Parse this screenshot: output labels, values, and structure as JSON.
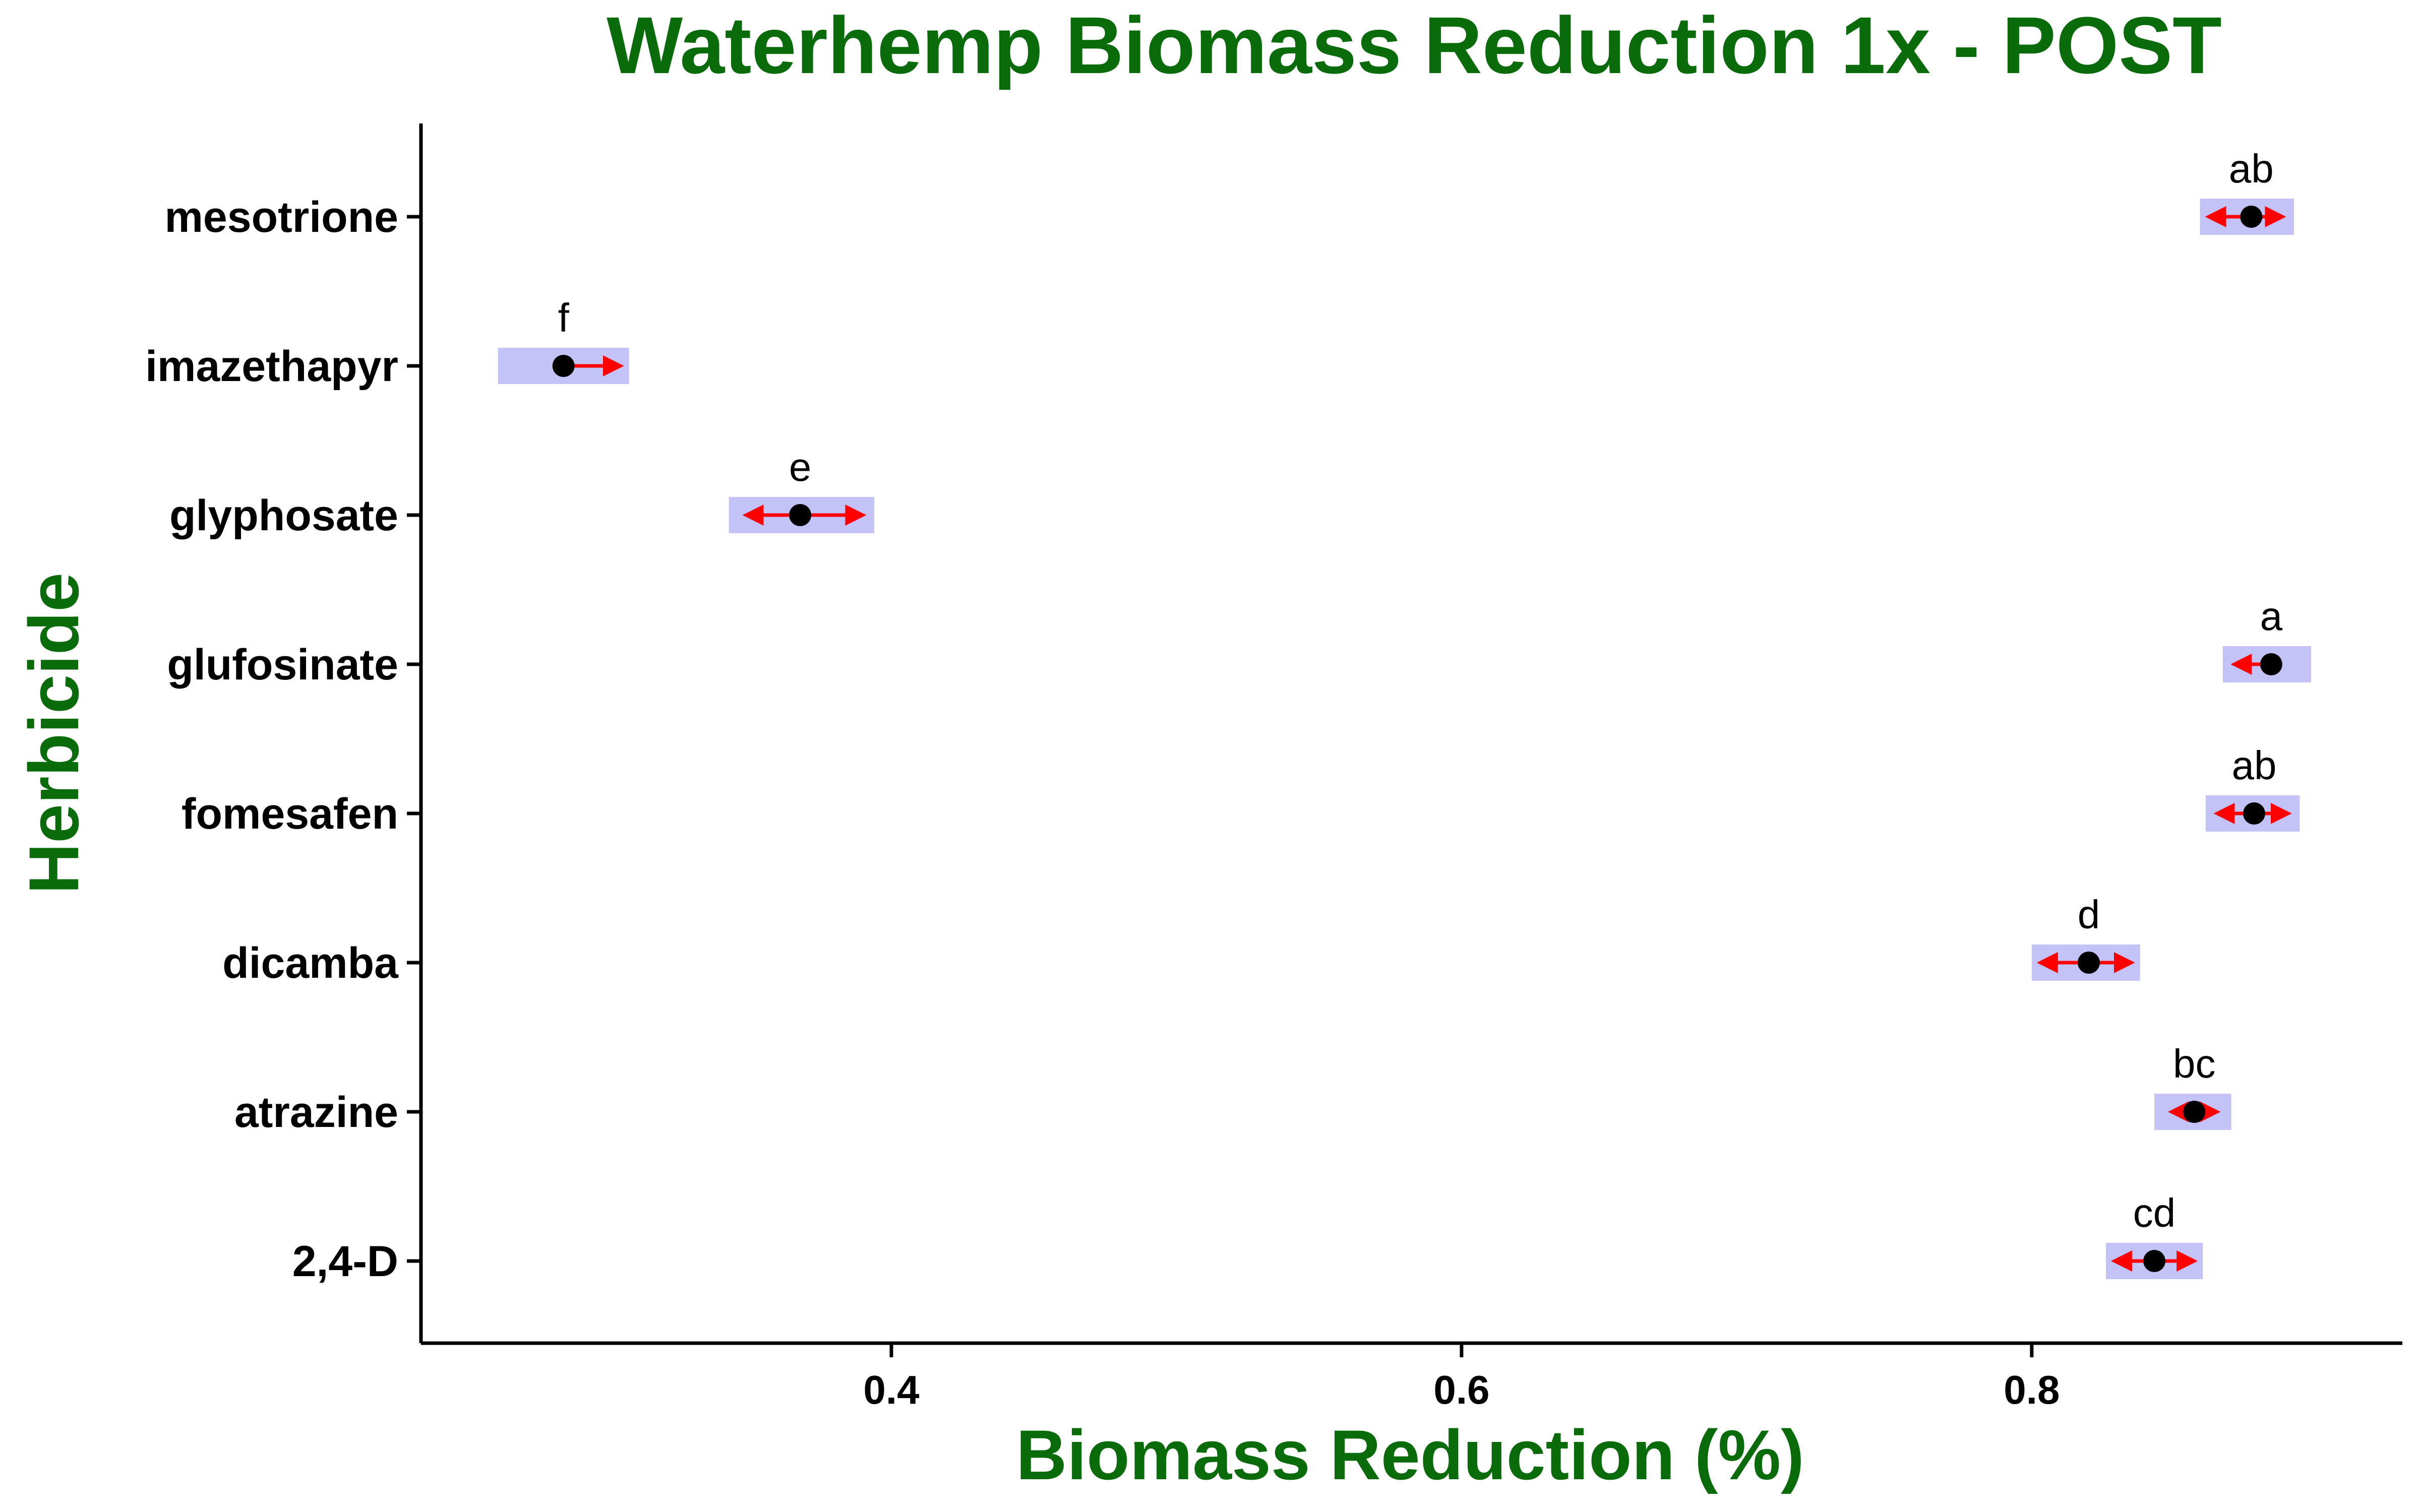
{
  "chart_data": {
    "type": "scatter",
    "title": "Waterhemp Biomass Reduction 1x - POST",
    "xlabel": "Biomass Reduction (%)",
    "ylabel": "Herbicide",
    "xlim": [
      0.235,
      0.93
    ],
    "xticks": [
      0.4,
      0.6,
      0.8
    ],
    "xtick_labels": [
      "0.4",
      "0.6",
      "0.8"
    ],
    "categories": [
      "mesotrione",
      "imazethapyr",
      "glyphosate",
      "glufosinate",
      "fomesafen",
      "dicamba",
      "atrazine",
      "2,4-D"
    ],
    "points": [
      {
        "herbicide": "mesotrione",
        "estimate": 0.877,
        "lower": 0.859,
        "upper": 0.892,
        "ci_lower": 0.862,
        "ci_upper": 0.888,
        "group": "ab"
      },
      {
        "herbicide": "imazethapyr",
        "estimate": 0.285,
        "lower": 0.262,
        "upper": 0.308,
        "ci_lower": 0.285,
        "ci_upper": 0.305,
        "group": "f"
      },
      {
        "herbicide": "glyphosate",
        "estimate": 0.368,
        "lower": 0.343,
        "upper": 0.394,
        "ci_lower": 0.349,
        "ci_upper": 0.39,
        "group": "e"
      },
      {
        "herbicide": "glufosinate",
        "estimate": 0.884,
        "lower": 0.867,
        "upper": 0.898,
        "ci_lower": 0.871,
        "ci_upper": 0.884,
        "group": "a"
      },
      {
        "herbicide": "fomesafen",
        "estimate": 0.878,
        "lower": 0.861,
        "upper": 0.894,
        "ci_lower": 0.865,
        "ci_upper": 0.89,
        "group": "ab"
      },
      {
        "herbicide": "dicamba",
        "estimate": 0.82,
        "lower": 0.8,
        "upper": 0.838,
        "ci_lower": 0.803,
        "ci_upper": 0.835,
        "group": "d"
      },
      {
        "herbicide": "atrazine",
        "estimate": 0.857,
        "lower": 0.843,
        "upper": 0.87,
        "ci_lower": 0.849,
        "ci_upper": 0.865,
        "group": "bc"
      },
      {
        "herbicide": "2,4-D",
        "estimate": 0.843,
        "lower": 0.826,
        "upper": 0.86,
        "ci_lower": 0.829,
        "ci_upper": 0.857,
        "group": "cd"
      }
    ],
    "colors": {
      "title": "#0a6b0a",
      "interval_band": "#c3c3f7",
      "arrow": "#ff0000",
      "point": "#000000"
    },
    "grid": false,
    "legend": "none"
  }
}
